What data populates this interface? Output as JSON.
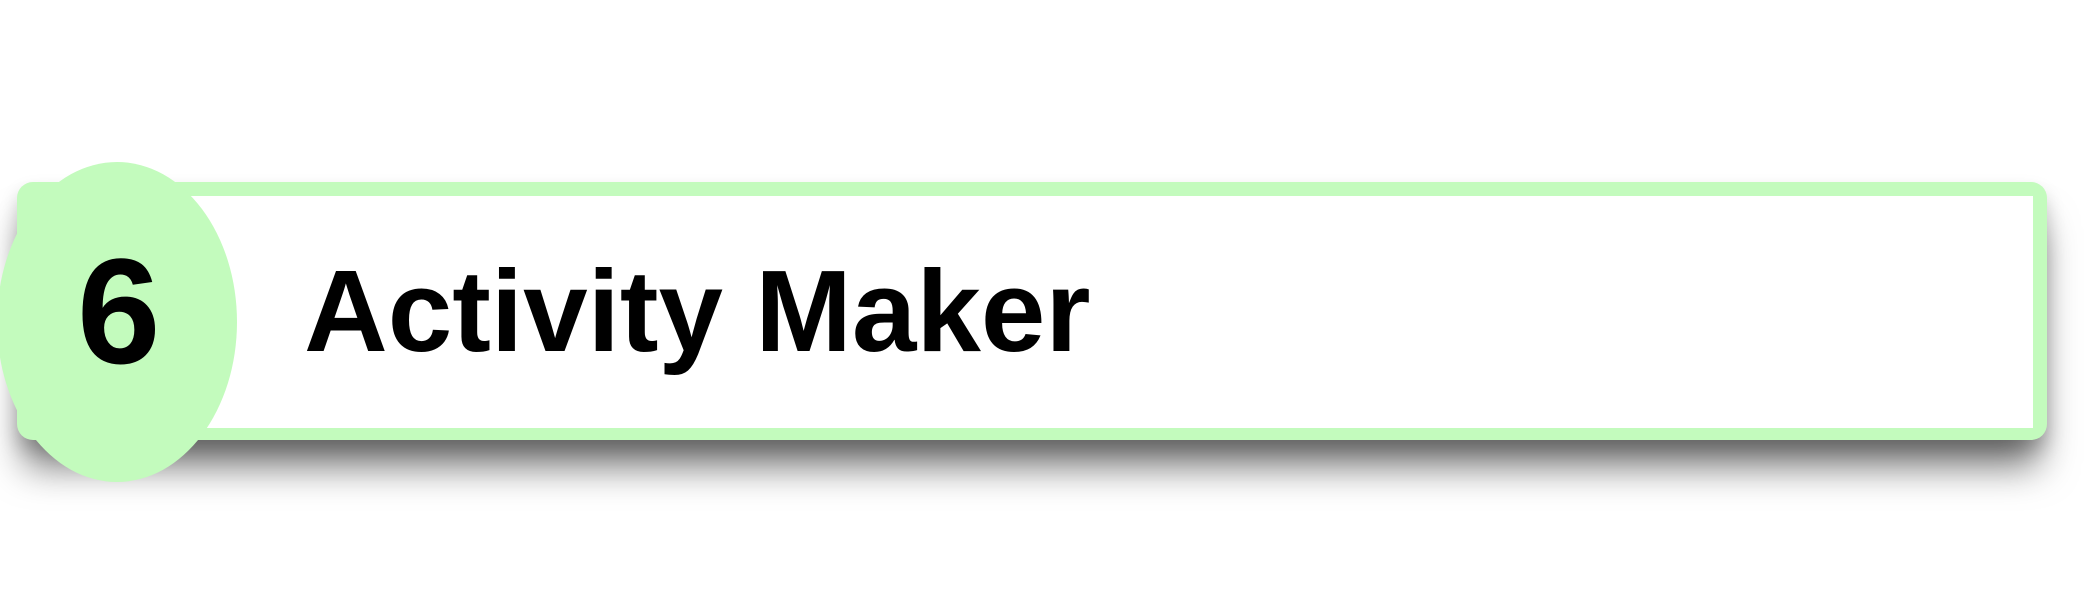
{
  "banner": {
    "number": "6",
    "title": "Activity Maker"
  },
  "colors": {
    "accent": "#c3fbbd",
    "text": "#000000",
    "background": "#ffffff"
  }
}
